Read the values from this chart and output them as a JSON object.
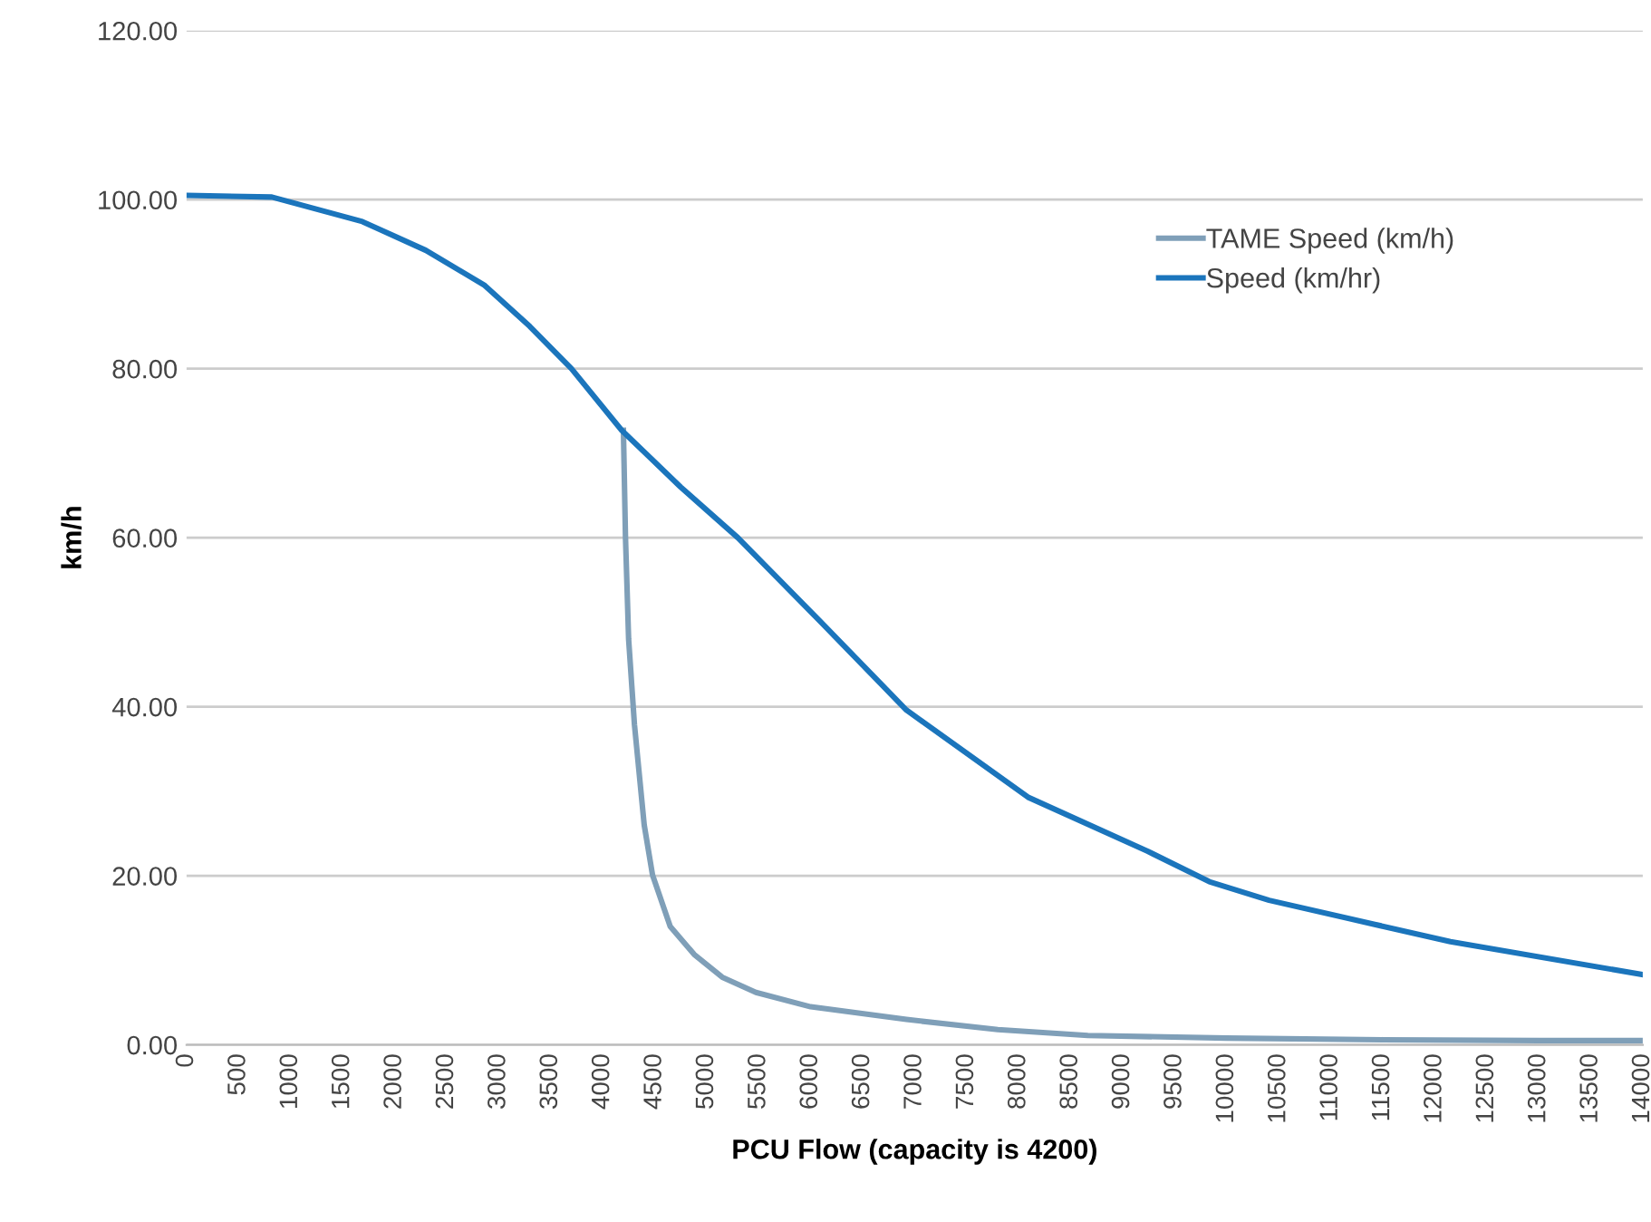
{
  "chart_data": {
    "type": "line",
    "xlabel": "PCU Flow (capacity is 4200)",
    "ylabel": "km/h",
    "xlim": [
      0,
      14000
    ],
    "xticks": [
      0,
      500,
      1000,
      1500,
      2000,
      2500,
      3000,
      3500,
      4000,
      4500,
      5000,
      5500,
      6000,
      6500,
      7000,
      7500,
      8000,
      8500,
      9000,
      9500,
      10000,
      10500,
      11000,
      11500,
      12000,
      12500,
      13000,
      13500,
      14000
    ],
    "ylim": [
      0,
      120
    ],
    "yticks": [
      {
        "value": 0,
        "label": "0.00"
      },
      {
        "value": 20,
        "label": "20.00"
      },
      {
        "value": 40,
        "label": "40.00"
      },
      {
        "value": 60,
        "label": "60.00"
      },
      {
        "value": 80,
        "label": "80.00"
      },
      {
        "value": 100,
        "label": "100.00"
      },
      {
        "value": 120,
        "label": "120.00"
      }
    ],
    "grid": "y",
    "legend": "top right",
    "marker": "none",
    "line_style": "solid",
    "series": [
      {
        "name": "TAME Speed (km/h)",
        "color": "#7f9fb8",
        "x": [
          4200,
          4220,
          4250,
          4306,
          4400,
          4480,
          4650,
          4880,
          5150,
          5474,
          6000,
          6921,
          7800,
          8665,
          10000,
          11500,
          13000,
          14000
        ],
        "values": [
          72.7,
          60,
          48,
          37.9,
          26,
          20.1,
          14,
          10.7,
          8,
          6.2,
          4.5,
          3.0,
          1.8,
          1.1,
          0.8,
          0.6,
          0.5,
          0.5
        ]
      },
      {
        "name": "Speed (km/hr)",
        "color": "#1b75bc",
        "x": [
          0,
          820,
          1690,
          2300,
          2860,
          3300,
          3700,
          4184,
          4750,
          5300,
          6100,
          6921,
          8089,
          9240,
          9833,
          10408,
          12151,
          14000
        ],
        "values": [
          100.5,
          100.3,
          97.4,
          94.0,
          89.9,
          85.0,
          80.0,
          72.7,
          66.0,
          60.0,
          50.0,
          39.6,
          29.3,
          22.9,
          19.3,
          17.1,
          12.2,
          8.3
        ]
      }
    ]
  }
}
